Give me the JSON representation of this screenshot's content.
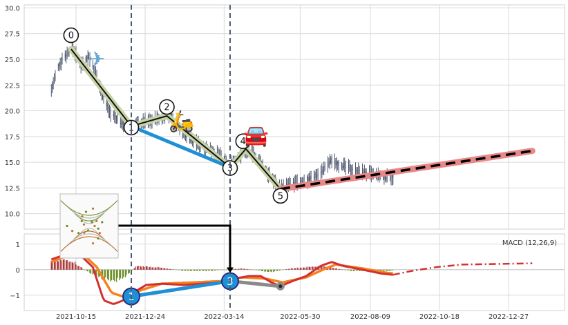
{
  "chart_data": [
    {
      "type": "candlestick",
      "panel": "price",
      "ylim": [
        8.5,
        30.3
      ],
      "y_ticks": [
        "10.0",
        "12.5",
        "15.0",
        "17.5",
        "20.0",
        "22.5",
        "25.0",
        "27.5",
        "30.0"
      ],
      "y_tick_values": [
        10,
        12.5,
        15,
        17.5,
        20,
        22.5,
        25,
        27.5,
        30
      ],
      "grid": true,
      "price_anchors": [
        [
          "2021-09-20",
          22.0
        ],
        [
          "2021-09-27",
          24.2
        ],
        [
          "2021-10-01",
          25.0
        ],
        [
          "2021-10-08",
          25.8
        ],
        [
          "2021-10-12",
          26.0
        ],
        [
          "2021-10-20",
          24.5
        ],
        [
          "2021-10-28",
          25.3
        ],
        [
          "2021-11-05",
          23.4
        ],
        [
          "2021-11-12",
          21.2
        ],
        [
          "2021-11-20",
          19.6
        ],
        [
          "2021-11-28",
          19.0
        ],
        [
          "2021-12-05",
          18.6
        ],
        [
          "2021-12-12",
          18.5
        ],
        [
          "2021-12-22",
          18.9
        ],
        [
          "2022-01-05",
          19.2
        ],
        [
          "2022-01-20",
          19.6
        ],
        [
          "2022-02-01",
          17.8
        ],
        [
          "2022-02-15",
          16.8
        ],
        [
          "2022-03-01",
          16.2
        ],
        [
          "2022-03-10",
          15.6
        ],
        [
          "2022-03-18",
          14.6
        ],
        [
          "2022-03-28",
          15.5
        ],
        [
          "2022-04-08",
          16.3
        ],
        [
          "2022-04-18",
          15.2
        ],
        [
          "2022-04-28",
          13.8
        ],
        [
          "2022-05-10",
          12.5
        ],
        [
          "2022-05-20",
          12.8
        ],
        [
          "2022-06-05",
          13.2
        ],
        [
          "2022-06-20",
          14.0
        ],
        [
          "2022-07-01",
          15.2
        ],
        [
          "2022-07-10",
          14.7
        ],
        [
          "2022-07-25",
          14.2
        ],
        [
          "2022-08-10",
          13.8
        ],
        [
          "2022-08-25",
          13.5
        ],
        [
          "2022-09-01",
          13.6
        ]
      ],
      "swing_points": [
        {
          "label": "0",
          "date": "2021-10-10",
          "value": 26.0
        },
        {
          "label": "1",
          "date": "2021-12-10",
          "value": 18.5
        },
        {
          "label": "2",
          "date": "2022-01-15",
          "value": 19.5
        },
        {
          "label": "3",
          "date": "2022-03-20",
          "value": 14.5
        },
        {
          "label": "4",
          "date": "2022-04-05",
          "value": 16.3
        },
        {
          "label": "5",
          "date": "2022-05-10",
          "value": 12.4
        }
      ],
      "trend_line": {
        "from": {
          "date": "2021-12-10",
          "value": 18.5
        },
        "to": {
          "date": "2022-03-20",
          "value": 14.5
        }
      },
      "forecast": {
        "start": {
          "date": "2022-05-10",
          "value": 12.4
        },
        "end": {
          "date": "2023-01-20",
          "value": 16.1
        }
      },
      "vertical_markers": [
        "2021-12-10",
        "2022-03-20"
      ],
      "stickers": [
        {
          "icon": "airplane-sticker",
          "glyph": "✈",
          "color": "#6ba8d6",
          "date": "2021-11-05",
          "value": 25.0
        },
        {
          "icon": "scooter-sticker",
          "glyph": "🛵",
          "color": "#e08a2c",
          "date": "2022-01-30",
          "value": 19.0
        },
        {
          "icon": "car-sticker",
          "glyph": "🚘",
          "color": "#2f86d6",
          "date": "2022-04-15",
          "value": 17.6
        }
      ]
    },
    {
      "type": "macd",
      "panel": "indicator",
      "legend": "MACD (12,26,9)",
      "ylim": [
        -1.6,
        1.4
      ],
      "y_ticks": [
        "−1",
        "0",
        "1"
      ],
      "y_tick_values": [
        -1,
        0,
        1
      ],
      "x_ticks": [
        "2021-10-15",
        "2021-12-24",
        "2022-03-14",
        "2022-05-30",
        "2022-08-09",
        "2022-10-18",
        "2022-12-27"
      ],
      "macd_anchors": [
        [
          "2021-09-20",
          0.4
        ],
        [
          "2021-10-05",
          0.6
        ],
        [
          "2021-10-20",
          0.55
        ],
        [
          "2021-11-01",
          0.1
        ],
        [
          "2021-11-12",
          -1.2
        ],
        [
          "2021-11-22",
          -1.35
        ],
        [
          "2021-12-02",
          -1.2
        ],
        [
          "2021-12-12",
          -0.9
        ],
        [
          "2021-12-25",
          -0.6
        ],
        [
          "2022-01-10",
          -0.55
        ],
        [
          "2022-02-01",
          -0.6
        ],
        [
          "2022-02-20",
          -0.55
        ],
        [
          "2022-03-10",
          -0.5
        ],
        [
          "2022-03-25",
          -0.35
        ],
        [
          "2022-04-08",
          -0.25
        ],
        [
          "2022-04-20",
          -0.25
        ],
        [
          "2022-05-01",
          -0.5
        ],
        [
          "2022-05-10",
          -0.65
        ],
        [
          "2022-05-22",
          -0.45
        ],
        [
          "2022-06-05",
          -0.25
        ],
        [
          "2022-06-20",
          0.15
        ],
        [
          "2022-07-01",
          0.3
        ],
        [
          "2022-07-12",
          0.15
        ],
        [
          "2022-08-01",
          0.0
        ],
        [
          "2022-08-20",
          -0.15
        ],
        [
          "2022-09-01",
          -0.2
        ]
      ],
      "signal_anchors": [
        [
          "2021-09-20",
          0.3
        ],
        [
          "2021-10-10",
          0.6
        ],
        [
          "2021-10-25",
          0.5
        ],
        [
          "2021-11-05",
          0.1
        ],
        [
          "2021-11-20",
          -0.9
        ],
        [
          "2021-12-05",
          -1.1
        ],
        [
          "2021-12-20",
          -0.8
        ],
        [
          "2022-01-10",
          -0.55
        ],
        [
          "2022-02-10",
          -0.5
        ],
        [
          "2022-03-10",
          -0.45
        ],
        [
          "2022-04-01",
          -0.3
        ],
        [
          "2022-04-25",
          -0.35
        ],
        [
          "2022-05-12",
          -0.5
        ],
        [
          "2022-06-05",
          -0.3
        ],
        [
          "2022-06-25",
          0.05
        ],
        [
          "2022-07-05",
          0.2
        ],
        [
          "2022-08-01",
          0.05
        ],
        [
          "2022-08-25",
          -0.12
        ],
        [
          "2022-09-01",
          -0.15
        ]
      ],
      "macd_forecast": [
        [
          "2022-09-01",
          -0.2
        ],
        [
          "2022-09-20",
          -0.05
        ],
        [
          "2022-10-15",
          0.1
        ],
        [
          "2022-11-10",
          0.2
        ],
        [
          "2023-01-20",
          0.25
        ]
      ],
      "histogram_anchors": [
        [
          "2021-09-20",
          0.35
        ],
        [
          "2021-10-10",
          0.4
        ],
        [
          "2021-10-25",
          -0.05
        ],
        [
          "2021-11-10",
          -0.35
        ],
        [
          "2021-11-25",
          -0.45
        ],
        [
          "2021-12-05",
          -0.25
        ],
        [
          "2021-12-15",
          0.15
        ],
        [
          "2022-01-05",
          0.1
        ],
        [
          "2022-02-01",
          -0.05
        ],
        [
          "2022-03-01",
          -0.05
        ],
        [
          "2022-04-01",
          0.05
        ],
        [
          "2022-05-01",
          -0.1
        ],
        [
          "2022-05-20",
          0.05
        ],
        [
          "2022-06-20",
          0.15
        ],
        [
          "2022-07-20",
          -0.05
        ],
        [
          "2022-09-01",
          -0.05
        ]
      ],
      "markers": [
        {
          "label": "1",
          "date": "2021-12-10",
          "value": -1.05
        },
        {
          "label": "3",
          "date": "2022-03-20",
          "value": -0.45
        }
      ],
      "grey_segment": {
        "from": {
          "date": "2022-03-20",
          "value": -0.45
        },
        "to": {
          "date": "2022-05-10",
          "value": -0.65
        }
      }
    }
  ],
  "inset": {
    "icon": "fractal-curve-thumbnail"
  },
  "colors": {
    "candle": "#3b4660",
    "macd": "#d23030",
    "signal": "#f58220",
    "hist_pos": "#a83232",
    "hist_neg": "#6b8e23",
    "trend": "#1f8fd6",
    "forecast_band": "#e88888",
    "swing_band": "#c8d4a8",
    "marker_dash": "#4a5a70"
  }
}
